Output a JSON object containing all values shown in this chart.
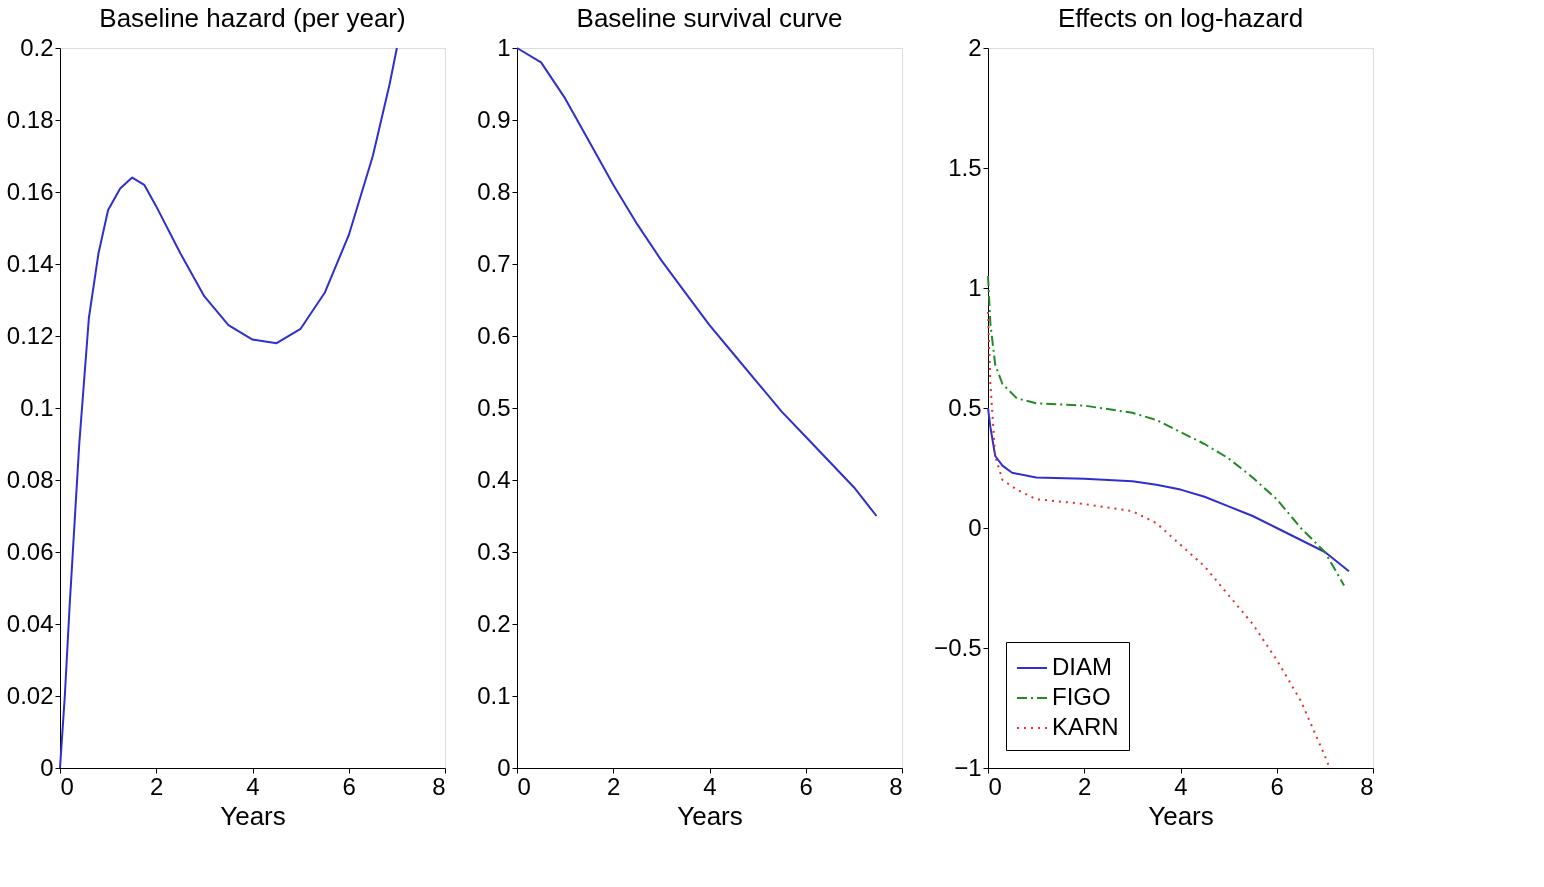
{
  "chart_data": [
    {
      "type": "line",
      "title": "Baseline hazard (per year)",
      "xlabel": "Years",
      "xlim": [
        0,
        8
      ],
      "xticks": [
        0,
        2,
        4,
        6,
        8
      ],
      "ylim": [
        0,
        0.2
      ],
      "yticks": [
        0,
        0.02,
        0.04,
        0.06,
        0.08,
        0.1,
        0.12,
        0.14,
        0.16,
        0.18,
        0.2
      ],
      "grid": false,
      "legend": false,
      "series": [
        {
          "color": "#2f2fd0",
          "line_style": "solid",
          "x": [
            0,
            0.1,
            0.2,
            0.4,
            0.6,
            0.8,
            1.0,
            1.25,
            1.5,
            1.75,
            2.0,
            2.5,
            3.0,
            3.5,
            4.0,
            4.5,
            5.0,
            5.5,
            6.0,
            6.5,
            6.85,
            7.0
          ],
          "values": [
            0,
            0.02,
            0.045,
            0.09,
            0.125,
            0.143,
            0.155,
            0.161,
            0.164,
            0.162,
            0.156,
            0.143,
            0.131,
            0.123,
            0.119,
            0.118,
            0.122,
            0.132,
            0.148,
            0.17,
            0.19,
            0.2
          ]
        }
      ]
    },
    {
      "type": "line",
      "title": "Baseline survival curve",
      "xlabel": "Years",
      "xlim": [
        0,
        8
      ],
      "xticks": [
        0,
        2,
        4,
        6,
        8
      ],
      "ylim": [
        0,
        1
      ],
      "yticks": [
        0,
        0.1,
        0.2,
        0.3,
        0.4,
        0.5,
        0.6,
        0.7,
        0.8,
        0.9,
        1
      ],
      "grid": false,
      "legend": false,
      "series": [
        {
          "color": "#2f2fd0",
          "line_style": "solid",
          "x": [
            0,
            0.5,
            1,
            1.5,
            2,
            2.5,
            3,
            3.5,
            4,
            4.5,
            5,
            5.5,
            6,
            6.5,
            7,
            7.47
          ],
          "values": [
            1,
            0.98,
            0.93,
            0.87,
            0.81,
            0.755,
            0.705,
            0.66,
            0.615,
            0.575,
            0.535,
            0.495,
            0.46,
            0.425,
            0.39,
            0.35
          ]
        }
      ]
    },
    {
      "type": "line",
      "title": "Effects on log-hazard",
      "xlabel": "Years",
      "xlim": [
        0,
        8
      ],
      "xticks": [
        0,
        2,
        4,
        6,
        8
      ],
      "ylim": [
        -1,
        2
      ],
      "yticks": [
        -1,
        -0.5,
        0,
        0.5,
        1,
        1.5,
        2
      ],
      "grid": false,
      "legend": "bottom left",
      "series": [
        {
          "name": "DIAM",
          "color": "#2f2fd0",
          "line_style": "solid",
          "x": [
            0,
            0.05,
            0.15,
            0.3,
            0.5,
            1,
            2,
            3,
            3.5,
            4,
            4.5,
            5,
            5.5,
            6,
            6.5,
            7,
            7.5
          ],
          "values": [
            0.5,
            0.42,
            0.3,
            0.26,
            0.23,
            0.21,
            0.205,
            0.195,
            0.18,
            0.16,
            0.13,
            0.09,
            0.05,
            0.0,
            -0.05,
            -0.1,
            -0.18
          ]
        },
        {
          "name": "FIGO",
          "color": "#238a23",
          "line_style": "dashed",
          "x": [
            0,
            0.05,
            0.15,
            0.3,
            0.6,
            1,
            2,
            3,
            3.5,
            4,
            4.5,
            5,
            5.5,
            6,
            6.5,
            7,
            7.4
          ],
          "values": [
            1.05,
            0.85,
            0.68,
            0.6,
            0.54,
            0.52,
            0.51,
            0.48,
            0.45,
            0.4,
            0.35,
            0.29,
            0.21,
            0.12,
            0.0,
            -0.1,
            -0.24
          ]
        },
        {
          "name": "KARN",
          "color": "#e03030",
          "line_style": "dotted",
          "x": [
            0,
            0.05,
            0.15,
            0.3,
            0.6,
            1,
            2,
            3,
            3.5,
            4,
            4.5,
            5,
            5.5,
            6,
            6.5,
            7,
            7.1
          ],
          "values": [
            0.9,
            0.6,
            0.3,
            0.2,
            0.16,
            0.12,
            0.1,
            0.07,
            0.02,
            -0.07,
            -0.16,
            -0.28,
            -0.4,
            -0.55,
            -0.72,
            -0.95,
            -1.0
          ]
        }
      ]
    }
  ]
}
